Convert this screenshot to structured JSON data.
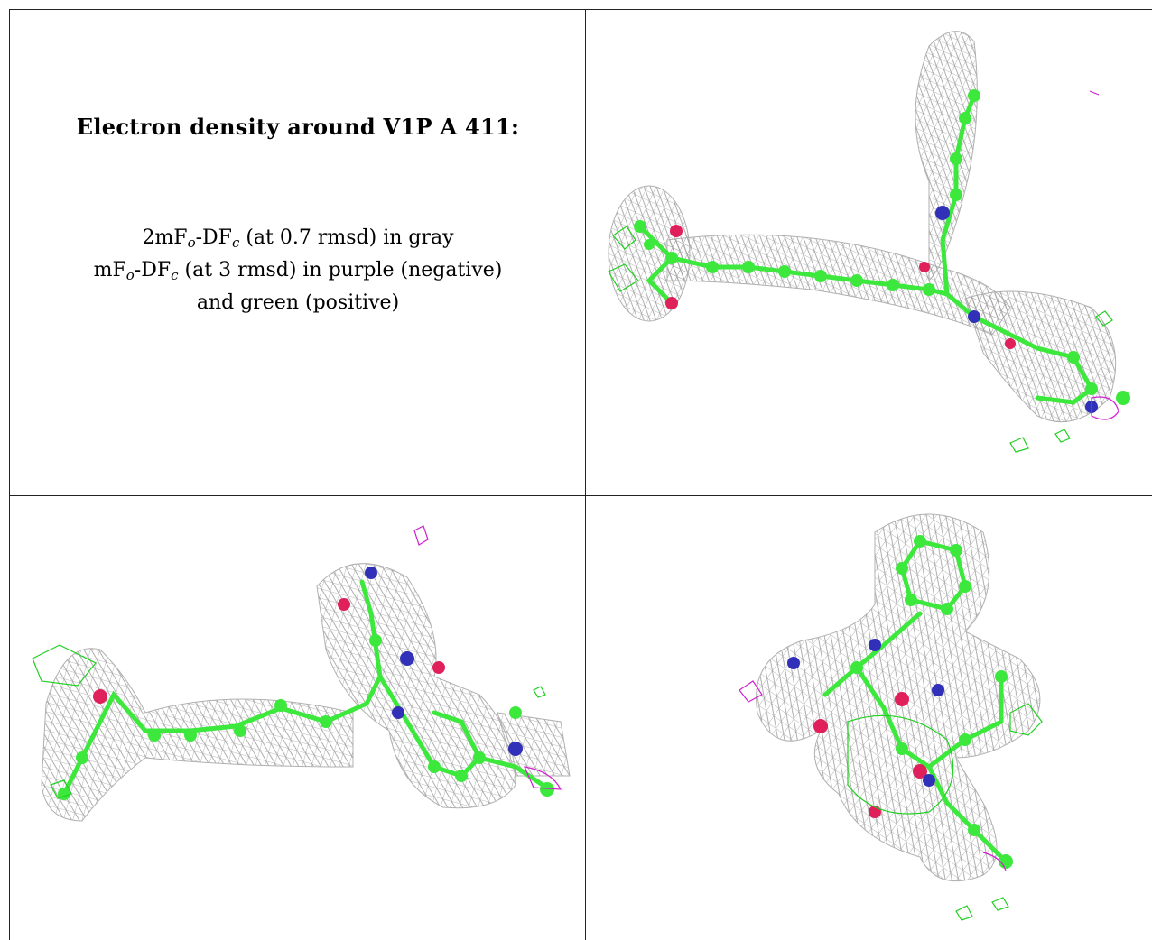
{
  "caption": {
    "title": "Electron density around V1P A 411:",
    "legend": {
      "line1_pre": "2mF",
      "line1_sub1": "o",
      "line1_mid": "-DF",
      "line1_sub2": "c",
      "line1_post": " (at 0.7 rmsd) in gray",
      "line2_pre": "mF",
      "line2_sub1": "o",
      "line2_mid": "-DF",
      "line2_sub2": "c",
      "line2_post": " (at 3 rmsd) in purple (negative)",
      "line3": "and green (positive)"
    }
  },
  "colors": {
    "mesh_gray": "#a8a8a8",
    "carbon_green": "#3de83d",
    "nitrogen_blue": "#3030b8",
    "oxygen_red": "#e0205a",
    "negative_purple": "#d020d0",
    "positive_green": "#20d020"
  },
  "panels": [
    {
      "name": "view-1",
      "description_key": "top-right"
    },
    {
      "name": "view-2",
      "description_key": "bottom-left"
    },
    {
      "name": "view-3",
      "description_key": "bottom-right"
    }
  ]
}
